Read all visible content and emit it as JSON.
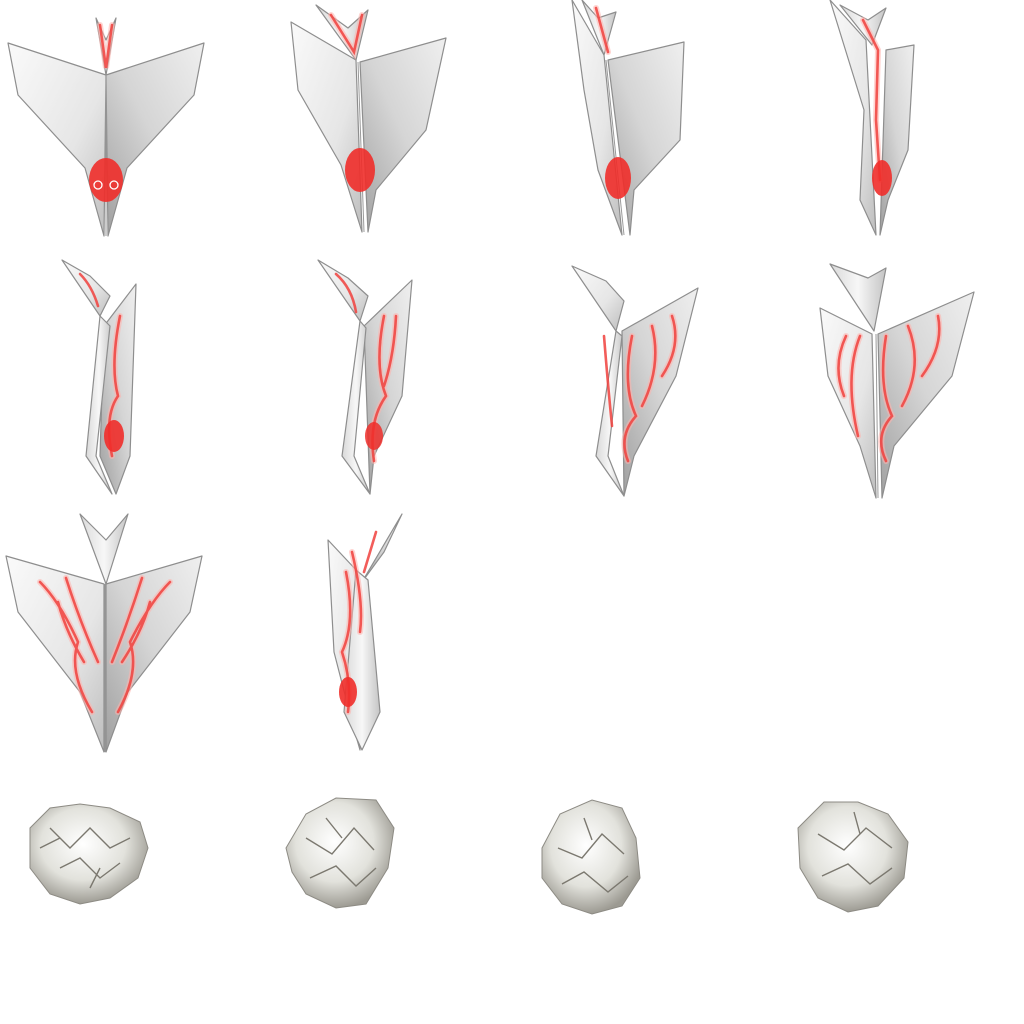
{
  "sprite_sheet": {
    "background": "#ffffff",
    "colors": {
      "paper_light": "#f2f2f2",
      "paper_mid": "#d8d8d8",
      "paper_dark": "#a9a9a9",
      "ink_red": "#ef2e2a"
    },
    "frames": [
      {
        "id": "plane-frame-1",
        "subject": "paper-plane",
        "pattern": "swirl"
      },
      {
        "id": "plane-frame-2",
        "subject": "paper-plane",
        "pattern": "swirl"
      },
      {
        "id": "plane-frame-3",
        "subject": "paper-plane",
        "pattern": "swirl"
      },
      {
        "id": "plane-frame-4",
        "subject": "paper-plane",
        "pattern": "swirl"
      },
      {
        "id": "plane-frame-5",
        "subject": "paper-plane",
        "pattern": "veins"
      },
      {
        "id": "plane-frame-6",
        "subject": "paper-plane",
        "pattern": "veins"
      },
      {
        "id": "plane-frame-7",
        "subject": "paper-plane",
        "pattern": "veins"
      },
      {
        "id": "plane-frame-8",
        "subject": "paper-plane",
        "pattern": "veins"
      },
      {
        "id": "plane-frame-9",
        "subject": "paper-plane",
        "pattern": "veins"
      },
      {
        "id": "plane-frame-10",
        "subject": "paper-plane",
        "pattern": "swirl"
      },
      {
        "id": "crumple-frame-1",
        "subject": "crumpled-paper-ball"
      },
      {
        "id": "crumple-frame-2",
        "subject": "crumpled-paper-ball"
      },
      {
        "id": "crumple-frame-3",
        "subject": "crumpled-paper-ball"
      },
      {
        "id": "crumple-frame-4",
        "subject": "crumpled-paper-ball"
      }
    ]
  }
}
